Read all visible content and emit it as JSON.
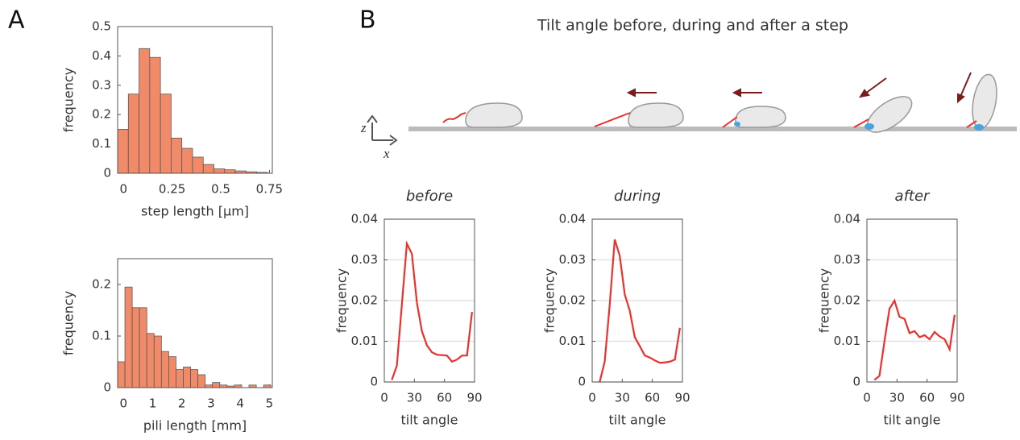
{
  "panel_labels": [
    "A",
    "B"
  ],
  "title": "Tilt angle before, during and after a step",
  "schematic_labels": {
    "z": "z",
    "x": "x"
  },
  "chart_data": [
    {
      "type": "histogram",
      "xlabel": "step length  [μm]",
      "ylabel": "frequency",
      "color": "#f08a68",
      "bins": [
        -0.03,
        0.025,
        0.08,
        0.135,
        0.19,
        0.245,
        0.3,
        0.355,
        0.41,
        0.465,
        0.52,
        0.575,
        0.63,
        0.685,
        0.74
      ],
      "values": [
        0.15,
        0.27,
        0.425,
        0.395,
        0.27,
        0.12,
        0.085,
        0.055,
        0.03,
        0.015,
        0.012,
        0.008,
        0.005,
        0.003
      ],
      "xlim": [
        -0.03,
        0.765
      ],
      "xticks": [
        0,
        0.25,
        0.5,
        0.75
      ],
      "ylim": [
        0,
        0.5
      ],
      "yticks": [
        0,
        0.1,
        0.2,
        0.3,
        0.4,
        0.5
      ]
    },
    {
      "type": "histogram",
      "xlabel": "pili length [mm]",
      "ylabel": "frequency",
      "color": "#f08a68",
      "bins": [
        -0.2,
        0.05,
        0.3,
        0.55,
        0.8,
        1.05,
        1.3,
        1.55,
        1.8,
        2.05,
        2.3,
        2.55,
        2.8,
        3.05,
        3.3,
        3.55,
        3.8,
        4.05,
        4.3,
        4.55,
        4.8,
        5.05
      ],
      "values": [
        0.05,
        0.195,
        0.155,
        0.155,
        0.105,
        0.1,
        0.07,
        0.06,
        0.035,
        0.04,
        0.035,
        0.025,
        0.005,
        0.01,
        0.005,
        0.003,
        0.005,
        0.0,
        0.005,
        0.0,
        0.005
      ],
      "xlim": [
        -0.2,
        5.1
      ],
      "xticks": [
        0,
        1,
        2,
        3,
        4,
        5
      ],
      "ylim": [
        0,
        0.25
      ],
      "yticks": [
        0,
        0.1,
        0.2
      ]
    },
    {
      "type": "line",
      "title": "before",
      "xlabel": "tilt angle",
      "ylabel": "frequency",
      "color": "#e8322e",
      "grid": true,
      "x": [
        7.5,
        12.5,
        17.5,
        22.5,
        27.5,
        32.5,
        37.5,
        42.5,
        47.5,
        52.5,
        57.5,
        62.5,
        67.5,
        72.5,
        77.5,
        82.5,
        87.5
      ],
      "values": [
        0.0005,
        0.004,
        0.019,
        0.034,
        0.0315,
        0.0195,
        0.0125,
        0.009,
        0.0073,
        0.0067,
        0.0066,
        0.0065,
        0.005,
        0.0055,
        0.0065,
        0.0065,
        0.0172
      ],
      "xlim": [
        0,
        90
      ],
      "xticks": [
        0,
        30,
        60,
        90
      ],
      "ylim": [
        0,
        0.04
      ],
      "yticks": [
        0,
        0.01,
        0.02,
        0.03,
        0.04
      ]
    },
    {
      "type": "line",
      "title": "during",
      "xlabel": "tilt angle",
      "ylabel": "frequency",
      "color": "#e8322e",
      "grid": true,
      "x": [
        7.5,
        12.5,
        17.5,
        22.5,
        27.5,
        32.5,
        37.5,
        42.5,
        47.5,
        52.5,
        57.5,
        62.5,
        67.5,
        72.5,
        77.5,
        82.5,
        87.5
      ],
      "values": [
        0.0,
        0.005,
        0.019,
        0.035,
        0.031,
        0.0215,
        0.0175,
        0.011,
        0.0088,
        0.0065,
        0.006,
        0.0053,
        0.0047,
        0.0048,
        0.005,
        0.0055,
        0.0133
      ],
      "xlim": [
        0,
        90
      ],
      "xticks": [
        0,
        30,
        60,
        90
      ],
      "ylim": [
        0,
        0.04
      ],
      "yticks": [
        0,
        0.01,
        0.02,
        0.03,
        0.04
      ]
    },
    {
      "type": "line",
      "title": "after",
      "xlabel": "tilt angle",
      "ylabel": "frequency",
      "color": "#e8322e",
      "grid": true,
      "x": [
        7.5,
        12.5,
        17.5,
        22.5,
        27.5,
        32.5,
        37.5,
        42.5,
        47.5,
        52.5,
        57.5,
        62.5,
        67.5,
        72.5,
        77.5,
        82.5,
        87.5
      ],
      "values": [
        0.0005,
        0.0015,
        0.01,
        0.018,
        0.02,
        0.016,
        0.0155,
        0.012,
        0.0125,
        0.011,
        0.0115,
        0.0105,
        0.0123,
        0.0112,
        0.0105,
        0.008,
        0.0165
      ],
      "xlim": [
        0,
        90
      ],
      "xticks": [
        0,
        30,
        60,
        90
      ],
      "ylim": [
        0,
        0.04
      ],
      "yticks": [
        0,
        0.01,
        0.02,
        0.03,
        0.04
      ]
    }
  ]
}
